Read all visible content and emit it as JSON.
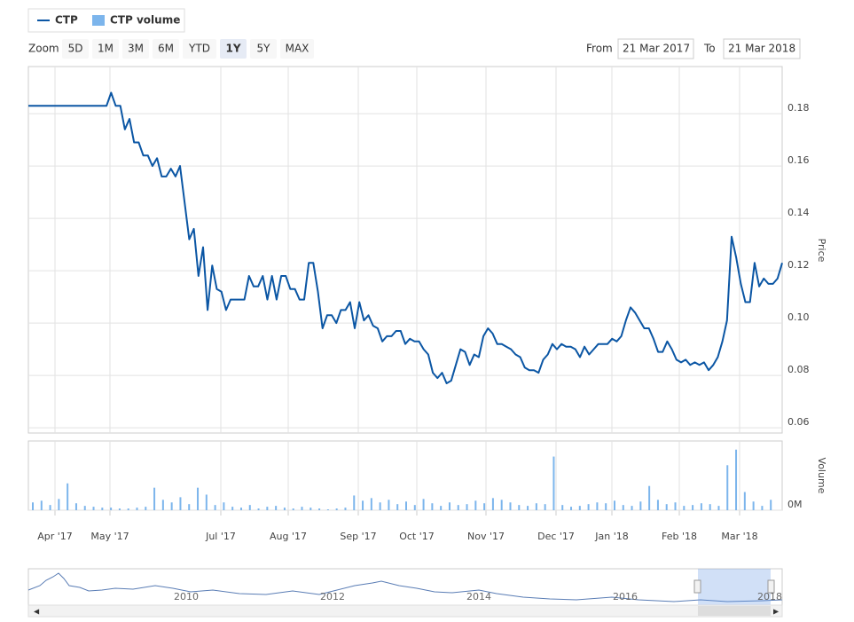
{
  "chart_data": {
    "type": "line",
    "series": [
      {
        "name": "CTP",
        "color": "#0b56a4",
        "values": [
          0.183,
          0.183,
          0.183,
          0.183,
          0.183,
          0.183,
          0.183,
          0.183,
          0.183,
          0.183,
          0.183,
          0.183,
          0.183,
          0.183,
          0.183,
          0.183,
          0.183,
          0.183,
          0.188,
          0.183,
          0.183,
          0.174,
          0.178,
          0.169,
          0.169,
          0.164,
          0.164,
          0.16,
          0.163,
          0.156,
          0.156,
          0.159,
          0.156,
          0.16,
          0.146,
          0.132,
          0.136,
          0.118,
          0.129,
          0.105,
          0.122,
          0.113,
          0.112,
          0.105,
          0.109,
          0.109,
          0.109,
          0.109,
          0.118,
          0.114,
          0.114,
          0.118,
          0.109,
          0.118,
          0.109,
          0.118,
          0.118,
          0.113,
          0.113,
          0.109,
          0.109,
          0.123,
          0.123,
          0.112,
          0.098,
          0.103,
          0.103,
          0.1,
          0.105,
          0.105,
          0.108,
          0.098,
          0.108,
          0.101,
          0.103,
          0.099,
          0.098,
          0.093,
          0.095,
          0.095,
          0.097,
          0.097,
          0.092,
          0.094,
          0.093,
          0.093,
          0.09,
          0.088,
          0.081,
          0.079,
          0.081,
          0.077,
          0.078,
          0.084,
          0.09,
          0.089,
          0.084,
          0.088,
          0.087,
          0.095,
          0.098,
          0.096,
          0.092,
          0.092,
          0.091,
          0.09,
          0.088,
          0.087,
          0.083,
          0.082,
          0.082,
          0.081,
          0.086,
          0.088,
          0.092,
          0.09,
          0.092,
          0.091,
          0.091,
          0.09,
          0.087,
          0.091,
          0.088,
          0.09,
          0.092,
          0.092,
          0.092,
          0.094,
          0.093,
          0.095,
          0.101,
          0.106,
          0.104,
          0.101,
          0.098,
          0.098,
          0.094,
          0.089,
          0.089,
          0.093,
          0.09,
          0.086,
          0.085,
          0.086,
          0.084,
          0.085,
          0.084,
          0.085,
          0.082,
          0.084,
          0.087,
          0.093,
          0.101,
          0.133,
          0.125,
          0.115,
          0.108,
          0.108,
          0.123,
          0.114,
          0.117,
          0.115,
          0.115,
          0.117,
          0.123
        ]
      },
      {
        "name": "CTP volume",
        "color": "#7cb5ec",
        "values": [
          0.9,
          1.1,
          0.6,
          1.3,
          3.1,
          0.8,
          0.5,
          0.4,
          0.3,
          0.3,
          0.2,
          0.2,
          0.3,
          0.4,
          2.6,
          1.2,
          0.9,
          1.5,
          0.7,
          2.6,
          1.8,
          0.6,
          0.9,
          0.4,
          0.3,
          0.6,
          0.2,
          0.4,
          0.5,
          0.3,
          0.2,
          0.4,
          0.3,
          0.2,
          0.1,
          0.2,
          0.3,
          1.7,
          1.1,
          1.4,
          0.9,
          1.2,
          0.7,
          1.0,
          0.6,
          1.3,
          0.8,
          0.5,
          0.9,
          0.6,
          0.7,
          1.1,
          0.8,
          1.4,
          1.2,
          0.9,
          0.6,
          0.5,
          0.8,
          0.7,
          6.2,
          0.6,
          0.4,
          0.5,
          0.7,
          0.9,
          0.8,
          1.1,
          0.6,
          0.5,
          1.0,
          2.8,
          1.2,
          0.7,
          0.9,
          0.5,
          0.6,
          0.8,
          0.7,
          0.5,
          5.2,
          7.0,
          2.1,
          1.0,
          0.5,
          1.2
        ]
      }
    ],
    "xticks": [
      "Apr '17",
      "May '17",
      "Jul '17",
      "Aug '17",
      "Sep '17",
      "Oct '17",
      "Nov '17",
      "Dec '17",
      "Jan '18",
      "Feb '18",
      "Mar '18"
    ],
    "ylim": [
      0.058,
      0.198
    ],
    "yticks": [
      0.06,
      0.08,
      {
        "value": 0.1,
        "label": "0.10"
      },
      0.12,
      0.14,
      0.16,
      0.18
    ],
    "ylabel": "Price",
    "y2lim": [
      0,
      8
    ],
    "y2ticks": [
      {
        "value": 0,
        "label": "0M"
      }
    ],
    "y2label": "Volume",
    "grid": true
  },
  "range_selector": {
    "label": "Zoom",
    "buttons": [
      "5D",
      "1M",
      "3M",
      "6M",
      "YTD",
      "1Y",
      "5Y",
      "MAX"
    ],
    "selected": 5,
    "from_label": "From",
    "from": "21 Mar 2017",
    "to_label": "To",
    "to": "21 Mar 2018"
  },
  "navigator": {
    "labels": [
      "2010",
      "2012",
      "2014",
      "2016",
      "2018"
    ]
  }
}
